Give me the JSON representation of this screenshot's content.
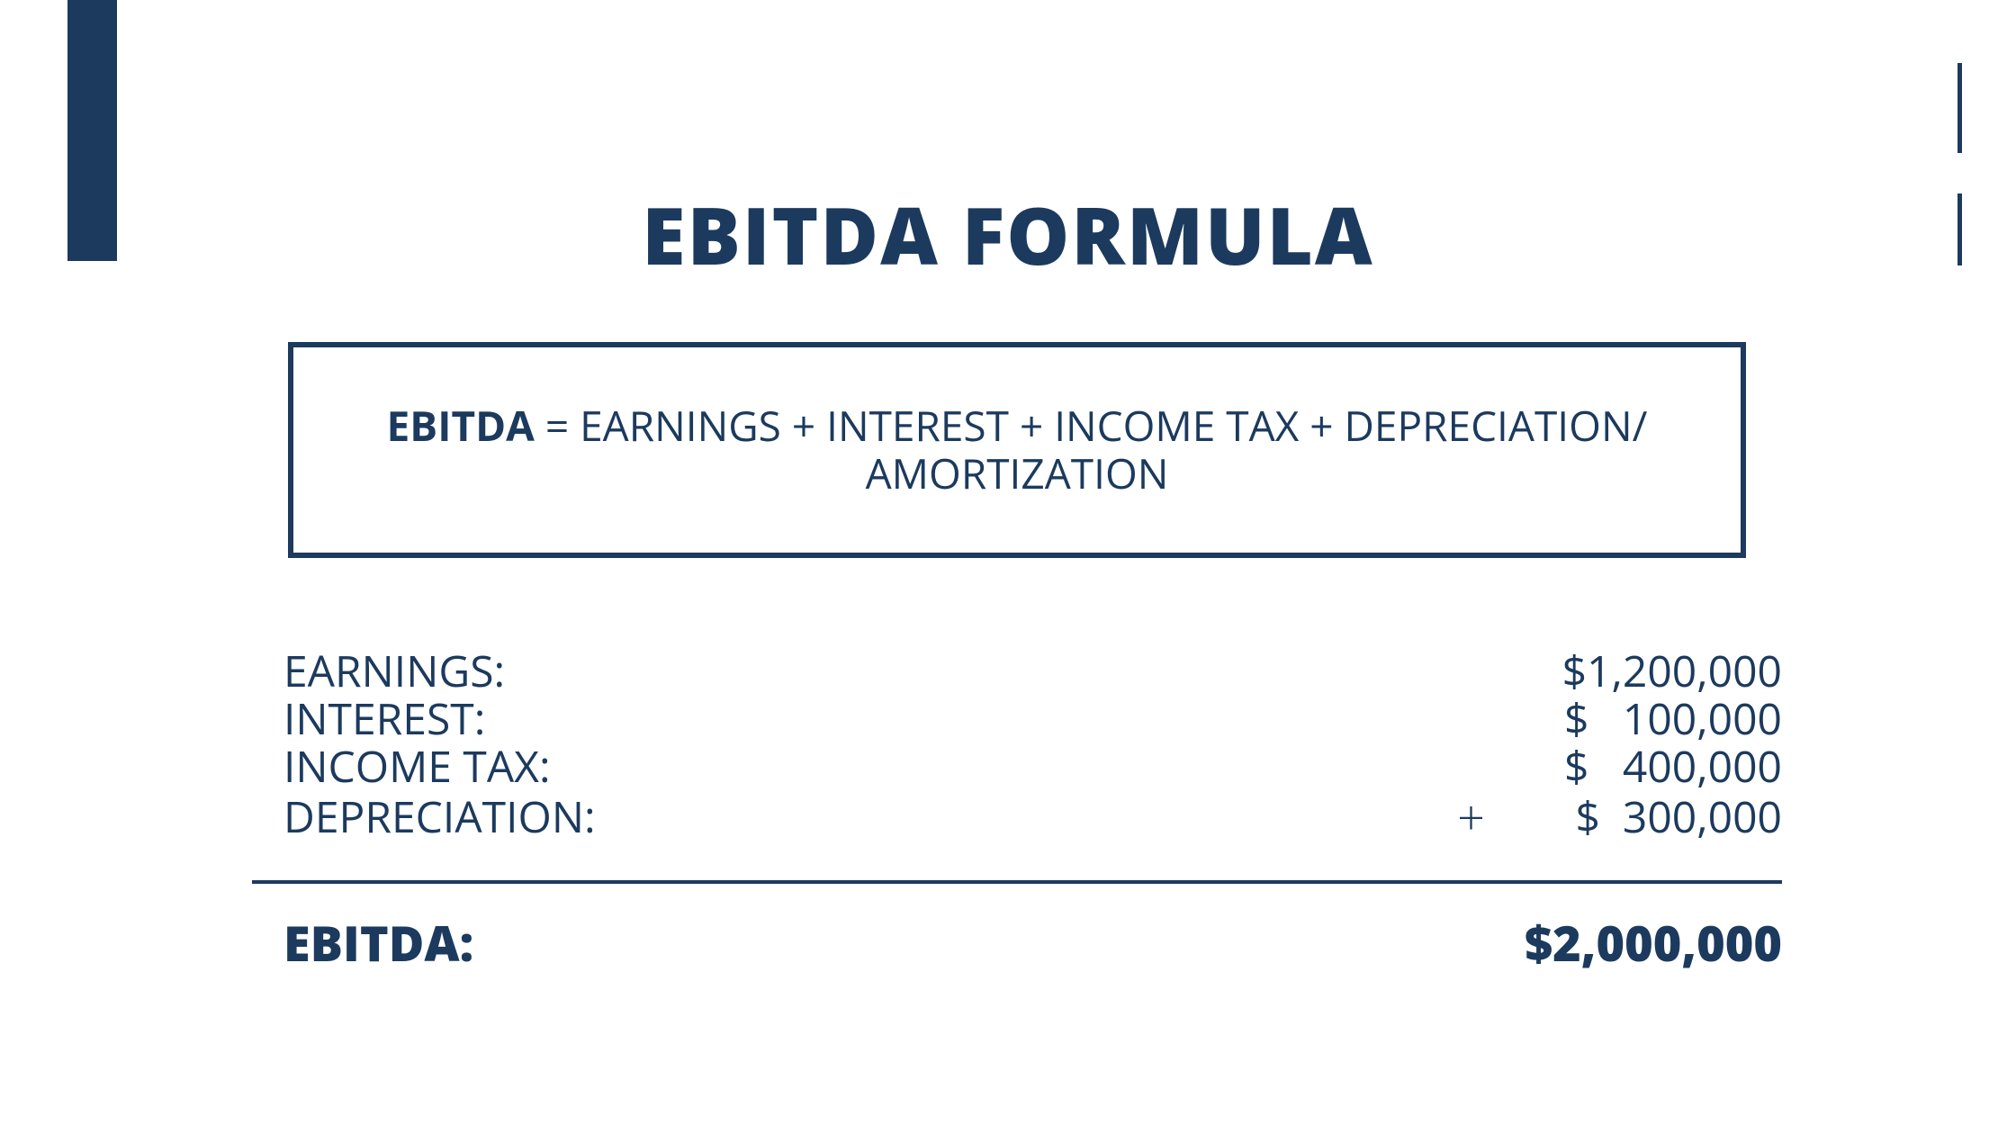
{
  "colors": {
    "primary": "#1c3a5e",
    "background": "#ffffff"
  },
  "title": "EBITDA FORMULA",
  "formula": {
    "term_bold": "EBITDA",
    "equals": " = ",
    "rest_line1": "EARNINGS + INTEREST + INCOME TAX + DEPRECIATION/",
    "rest_line2": "AMORTIZATION"
  },
  "rows": [
    {
      "label": "EARNINGS:",
      "value": "$1,200,000"
    },
    {
      "label": "INTEREST:",
      "value": "$   100,000"
    },
    {
      "label": "INCOME TAX:",
      "value": "$   400,000"
    },
    {
      "label": "DEPRECIATION:",
      "value": "$  300,000"
    }
  ],
  "plus_symbol": "+",
  "total": {
    "label": "EBITDA:",
    "value": "$2,000,000"
  },
  "typography": {
    "title_fontsize": 88,
    "formula_fontsize": 46,
    "row_fontsize": 48,
    "total_fontsize": 54
  }
}
